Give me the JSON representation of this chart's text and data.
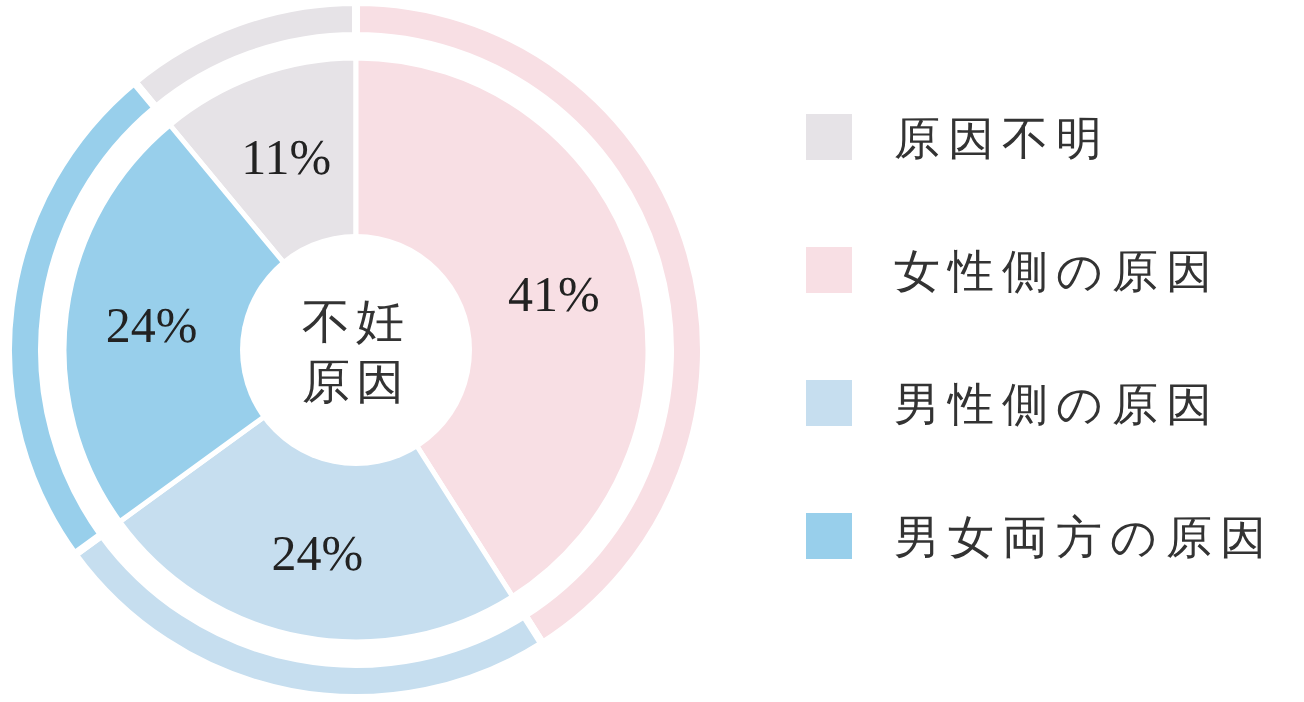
{
  "chart_data": {
    "type": "donut",
    "title": "不妊原因",
    "categories": [
      "原因不明",
      "女性側の原因",
      "男性側の原因",
      "男女両方の原因"
    ],
    "series": [
      {
        "values": [
          11,
          41,
          24,
          24
        ],
        "value_labels": [
          "11%",
          "41%",
          "24%",
          "24%"
        ]
      },
      {
        "values": [
          11,
          41,
          24,
          24
        ]
      }
    ],
    "colors": [
      "#e6e3e7",
      "#f8dfe4",
      "#c6deef",
      "#98cfeb"
    ],
    "legend": "right"
  }
}
